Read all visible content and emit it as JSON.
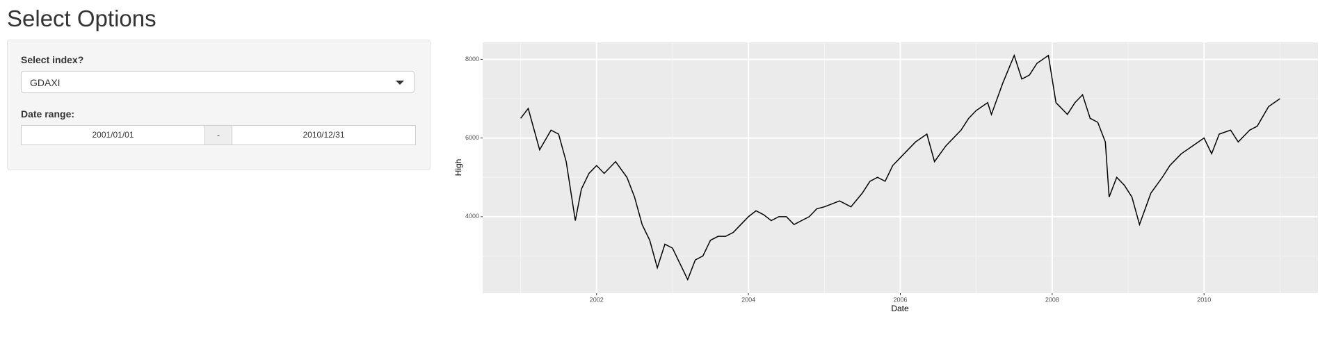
{
  "form": {
    "title": "Select Options",
    "index_label": "Select index?",
    "index_value": "GDAXI",
    "date_label": "Date range:",
    "start": "2001/01/01",
    "separator": "-",
    "end": "2010/12/31"
  },
  "chart_data": {
    "type": "line",
    "x_label": "Date",
    "y_label": "High",
    "color": "#000000",
    "x": [
      2001.0,
      2001.1,
      2001.25,
      2001.4,
      2001.5,
      2001.6,
      2001.72,
      2001.8,
      2001.9,
      2002.0,
      2002.1,
      2002.25,
      2002.4,
      2002.5,
      2002.6,
      2002.7,
      2002.8,
      2002.9,
      2003.0,
      2003.1,
      2003.2,
      2003.3,
      2003.4,
      2003.5,
      2003.6,
      2003.7,
      2003.8,
      2003.9,
      2004.0,
      2004.1,
      2004.2,
      2004.3,
      2004.4,
      2004.5,
      2004.6,
      2004.7,
      2004.8,
      2004.9,
      2005.0,
      2005.2,
      2005.35,
      2005.5,
      2005.6,
      2005.7,
      2005.8,
      2005.9,
      2006.0,
      2006.2,
      2006.35,
      2006.45,
      2006.6,
      2006.8,
      2006.9,
      2007.0,
      2007.15,
      2007.2,
      2007.35,
      2007.5,
      2007.6,
      2007.7,
      2007.8,
      2007.95,
      2008.05,
      2008.2,
      2008.3,
      2008.4,
      2008.5,
      2008.6,
      2008.7,
      2008.75,
      2008.85,
      2008.95,
      2009.05,
      2009.15,
      2009.3,
      2009.45,
      2009.55,
      2009.7,
      2009.85,
      2010.0,
      2010.1,
      2010.2,
      2010.35,
      2010.45,
      2010.6,
      2010.7,
      2010.85,
      2011.0
    ],
    "values": [
      6500,
      6750,
      5700,
      6200,
      6100,
      5400,
      3900,
      4700,
      5100,
      5300,
      5100,
      5400,
      5000,
      4500,
      3800,
      3400,
      2700,
      3300,
      3200,
      2800,
      2400,
      2900,
      3000,
      3400,
      3500,
      3500,
      3600,
      3800,
      4000,
      4150,
      4050,
      3900,
      4000,
      4000,
      3800,
      3900,
      4000,
      4200,
      4250,
      4400,
      4250,
      4600,
      4900,
      5000,
      4900,
      5300,
      5500,
      5900,
      6100,
      5400,
      5800,
      6200,
      6500,
      6700,
      6900,
      6600,
      7400,
      8100,
      7500,
      7600,
      7900,
      8100,
      6900,
      6600,
      6900,
      7100,
      6500,
      6400,
      5900,
      4500,
      5000,
      4800,
      4500,
      3800,
      4600,
      5000,
      5300,
      5600,
      5800,
      6000,
      5600,
      6100,
      6200,
      5900,
      6200,
      6300,
      6800,
      7000
    ],
    "xlim": [
      2000.5,
      2011.5
    ],
    "xticks": [
      2002,
      2004,
      2006,
      2008,
      2010
    ],
    "ylim": [
      2054,
      8432
    ],
    "yticks": [
      4000,
      6000,
      8000
    ],
    "grid": true
  }
}
